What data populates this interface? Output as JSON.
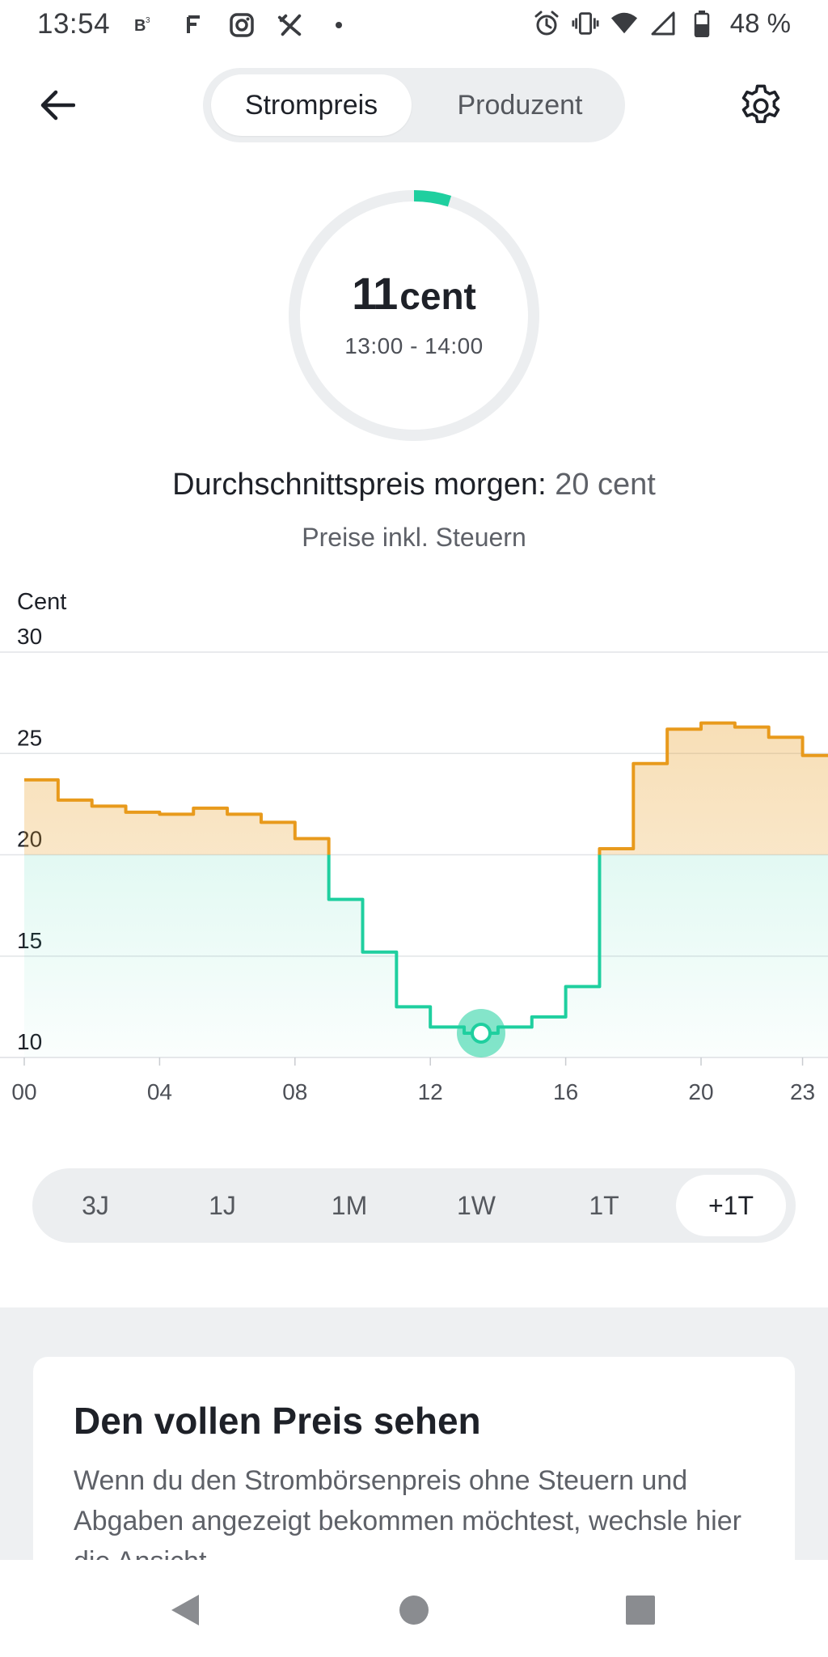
{
  "status_bar": {
    "time": "13:54",
    "battery_percent": "48 %",
    "left_icons": [
      "b3-app-icon",
      "f-app-icon",
      "instagram-icon",
      "tools-icon",
      "dot-icon"
    ],
    "right_icons": [
      "alarm-icon",
      "vibrate-icon",
      "wifi-icon",
      "signal-icon",
      "battery-icon"
    ]
  },
  "header": {
    "back_icon": "arrow-left-icon",
    "settings_icon": "gear-icon",
    "tabs": [
      {
        "label": "Strompreis",
        "active": true
      },
      {
        "label": "Produzent",
        "active": false
      }
    ]
  },
  "gauge": {
    "value": "11",
    "unit": "cent",
    "time_range": "13:00 - 14:00",
    "accent": "#1fcf9f"
  },
  "summary": {
    "avg_label": "Durchschnittspreis morgen:",
    "avg_value": "20 cent",
    "tax_note": "Preise inkl. Steuern"
  },
  "chart_data": {
    "type": "line",
    "style": "step",
    "ylabel": "Cent",
    "ylim": [
      10,
      30
    ],
    "yticks": [
      "30",
      "25",
      "20",
      "15",
      "10"
    ],
    "xticks": [
      "00",
      "04",
      "08",
      "12",
      "16",
      "20",
      "23"
    ],
    "threshold": 20,
    "colors": {
      "above": "#e89a1c",
      "below": "#1fcf9f"
    },
    "x": [
      0,
      1,
      2,
      3,
      4,
      5,
      6,
      7,
      8,
      9,
      10,
      11,
      12,
      13,
      14,
      15,
      16,
      17,
      18,
      19,
      20,
      21,
      22,
      23
    ],
    "values": [
      23.7,
      22.7,
      22.4,
      22.1,
      22.0,
      22.3,
      22.0,
      21.6,
      20.8,
      17.8,
      15.2,
      12.5,
      11.5,
      11.2,
      11.5,
      12.0,
      13.5,
      20.3,
      24.5,
      26.2,
      26.5,
      26.3,
      25.8,
      24.9
    ],
    "selected_index": 13
  },
  "range_selector": {
    "items": [
      {
        "label": "3J",
        "active": false
      },
      {
        "label": "1J",
        "active": false
      },
      {
        "label": "1M",
        "active": false
      },
      {
        "label": "1W",
        "active": false
      },
      {
        "label": "1T",
        "active": false
      },
      {
        "label": "+1T",
        "active": true
      }
    ]
  },
  "info_card": {
    "title": "Den vollen Preis sehen",
    "text": "Wenn du den Strombörsenpreis ohne Steuern und Abgaben angezeigt bekommen möchtest, wechsle hier die Ansicht."
  },
  "nav_bar": {
    "icons": [
      "back-triangle-icon",
      "home-circle-icon",
      "recents-square-icon"
    ]
  }
}
